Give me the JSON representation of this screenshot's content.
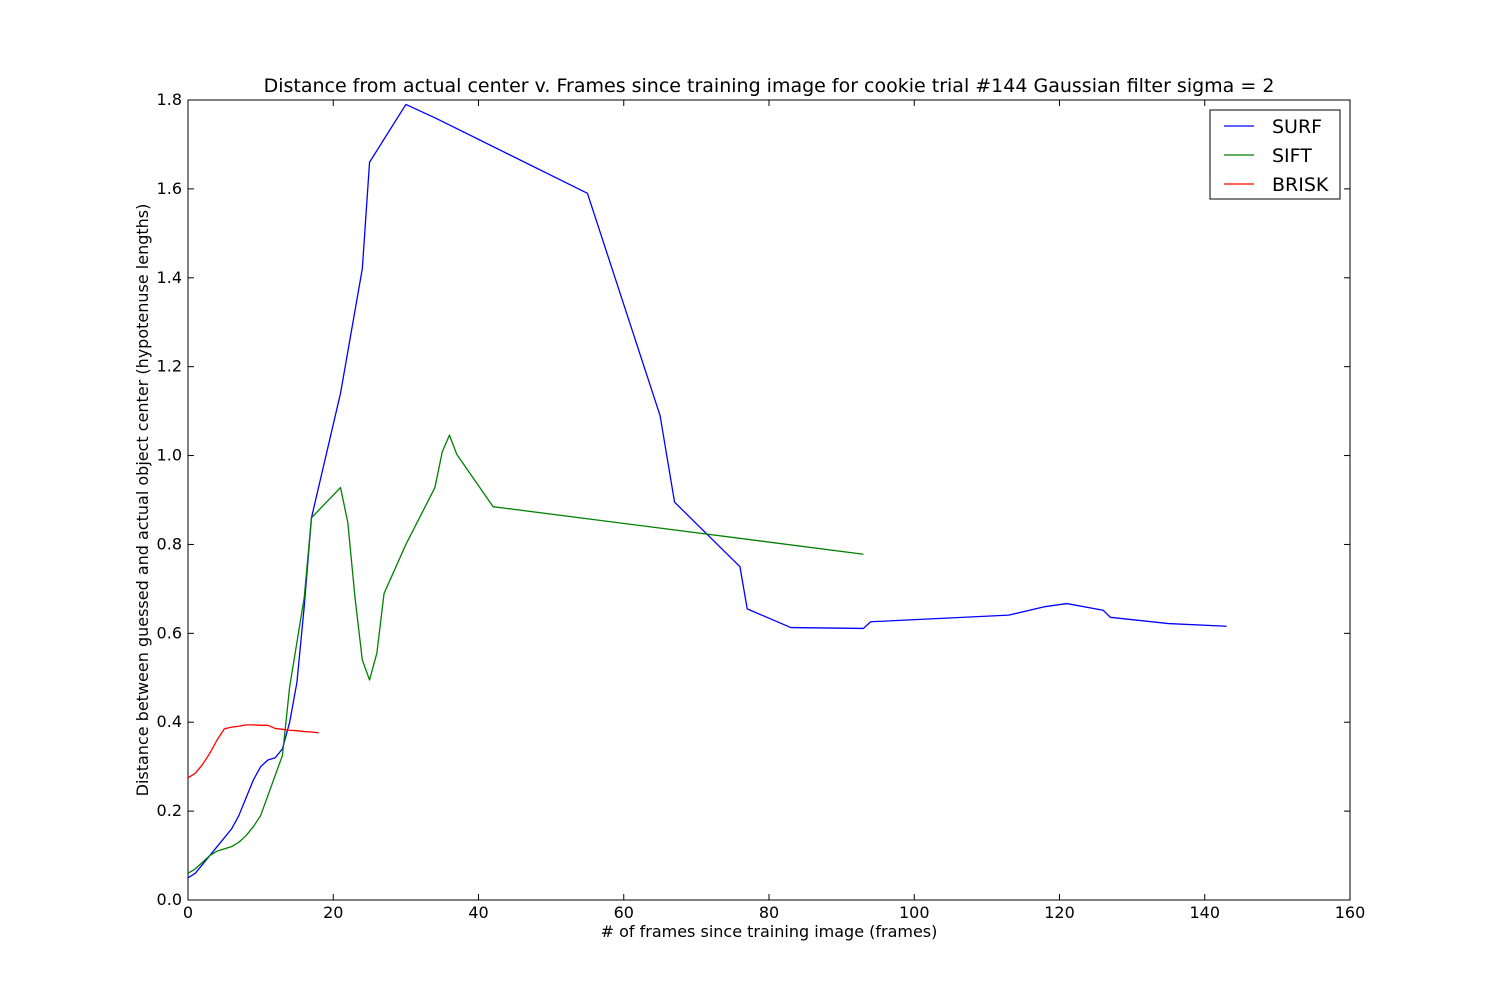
{
  "chart_data": {
    "type": "line",
    "title": "Distance from actual center v. Frames since training image for cookie trial #144 Gaussian filter sigma = 2",
    "xlabel": "# of frames since training image (frames)",
    "ylabel": "Distance between guessed and actual object center (hypotenuse lengths)",
    "xlim": [
      0,
      160
    ],
    "ylim": [
      0,
      1.8
    ],
    "xticks": [
      0,
      20,
      40,
      60,
      80,
      100,
      120,
      140,
      160
    ],
    "xtick_labels": [
      "0",
      "20",
      "40",
      "60",
      "80",
      "100",
      "120",
      "140",
      "160"
    ],
    "yticks": [
      0,
      0.2,
      0.4,
      0.6,
      0.8,
      1.0,
      1.2,
      1.4,
      1.6,
      1.8
    ],
    "ytick_labels": [
      "0.0",
      "0.2",
      "0.4",
      "0.6",
      "0.8",
      "1.0",
      "1.2",
      "1.4",
      "1.6",
      "1.8"
    ],
    "grid": false,
    "legend_position": "top-right",
    "series": [
      {
        "name": "SURF",
        "color": "#0000ff",
        "x": [
          0,
          1,
          2,
          3,
          4,
          5,
          6,
          7,
          8,
          9,
          10,
          11,
          12,
          13,
          14,
          15,
          16,
          17,
          21,
          24,
          25,
          30,
          34,
          55,
          65,
          67,
          76,
          77,
          83,
          93,
          94,
          113,
          118,
          121,
          126,
          127,
          135,
          143
        ],
        "y": [
          0.05,
          0.06,
          0.08,
          0.1,
          0.12,
          0.14,
          0.16,
          0.19,
          0.23,
          0.27,
          0.3,
          0.315,
          0.32,
          0.34,
          0.4,
          0.49,
          0.66,
          0.86,
          1.14,
          1.42,
          1.66,
          1.79,
          1.76,
          1.59,
          1.09,
          0.895,
          0.75,
          0.655,
          0.613,
          0.611,
          0.626,
          0.641,
          0.66,
          0.667,
          0.652,
          0.636,
          0.622,
          0.616
        ]
      },
      {
        "name": "SIFT",
        "color": "#008000",
        "x": [
          0,
          1,
          2,
          3,
          4,
          5,
          6,
          7,
          8,
          9,
          10,
          11,
          12,
          13,
          14,
          16,
          17,
          21,
          22,
          23,
          24,
          25,
          26,
          27,
          30,
          34,
          35,
          36,
          37,
          42,
          93
        ],
        "y": [
          0.06,
          0.07,
          0.085,
          0.1,
          0.11,
          0.115,
          0.12,
          0.13,
          0.145,
          0.165,
          0.19,
          0.235,
          0.28,
          0.325,
          0.48,
          0.68,
          0.86,
          0.928,
          0.85,
          0.68,
          0.54,
          0.495,
          0.555,
          0.69,
          0.8,
          0.928,
          1.008,
          1.046,
          1.003,
          0.885,
          0.778
        ]
      },
      {
        "name": "BRISK",
        "color": "#ff0000",
        "x": [
          0,
          1,
          2,
          3,
          4,
          5,
          6,
          7,
          8,
          9,
          10,
          11,
          12,
          13,
          14,
          15,
          16,
          17,
          18
        ],
        "y": [
          0.275,
          0.285,
          0.305,
          0.33,
          0.36,
          0.385,
          0.389,
          0.391,
          0.394,
          0.394,
          0.393,
          0.393,
          0.386,
          0.384,
          0.382,
          0.381,
          0.379,
          0.378,
          0.376
        ]
      }
    ]
  }
}
